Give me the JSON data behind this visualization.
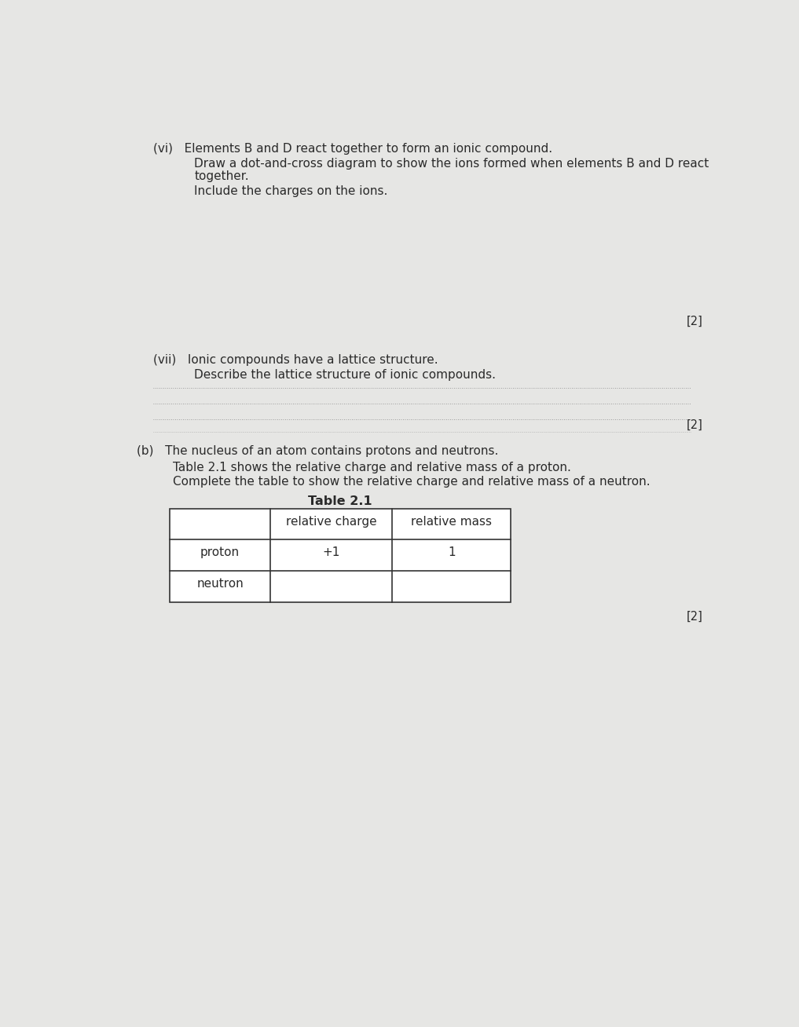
{
  "bg_color": "#e6e6e4",
  "text_color": "#2a2a2a",
  "title_vi_a": "(vi)   Elements B and D react together to form an ionic compound.",
  "title_vi_b": "Draw a dot-and-cross diagram to show the ions formed when elements B and D react",
  "title_vi_c": "together.",
  "title_vi_d": "Include the charges on the ions.",
  "marks_vi": "[2]",
  "title_vii_a": "(vii)   Ionic compounds have a lattice structure.",
  "title_vii_b": "Describe the lattice structure of ionic compounds.",
  "marks_vii": "[2]",
  "title_b_a": "(b)   The nucleus of an atom contains protons and neutrons.",
  "title_b_b": "Table 2.1 shows the relative charge and relative mass of a proton.",
  "title_b_c": "Complete the table to show the relative charge and relative mass of a neutron.",
  "table_title": "Table 2.1",
  "col_headers": [
    "",
    "relative charge",
    "relative mass"
  ],
  "row1": [
    "proton",
    "+1",
    "1"
  ],
  "row2": [
    "neutron",
    "",
    ""
  ],
  "marks_b": "[2]"
}
